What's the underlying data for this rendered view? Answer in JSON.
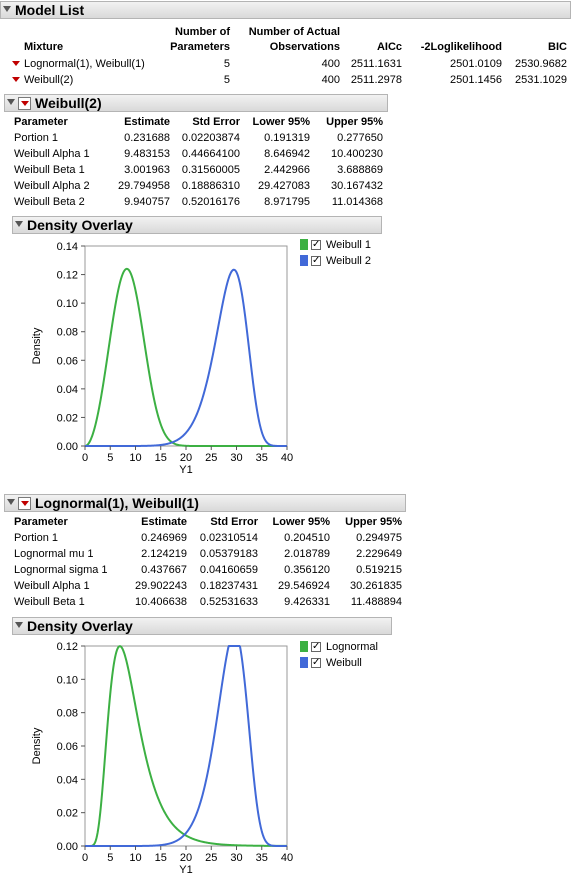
{
  "model_list": {
    "title": "Model List",
    "col_mixture": "Mixture",
    "col_nparams_1": "Number of",
    "col_nparams_2": "Parameters",
    "col_nobs_1": "Number of Actual",
    "col_nobs_2": "Observations",
    "col_aicc": "AICc",
    "col_loglik": "-2Loglikelihood",
    "col_bic": "BIC",
    "rows": [
      {
        "mixture": "Lognormal(1), Weibull(1)",
        "nparams": "5",
        "nobs": "400",
        "aicc": "2511.1631",
        "loglik": "2501.0109",
        "bic": "2530.9682"
      },
      {
        "mixture": "Weibull(2)",
        "nparams": "5",
        "nobs": "400",
        "aicc": "2511.2978",
        "loglik": "2501.1456",
        "bic": "2531.1029"
      }
    ]
  },
  "weibull2": {
    "title": "Weibull(2)",
    "headers": [
      "Parameter",
      "Estimate",
      "Std Error",
      "Lower 95%",
      "Upper 95%"
    ],
    "rows": [
      [
        "Portion 1",
        "0.231688",
        "0.02203874",
        "0.191319",
        "0.277650"
      ],
      [
        "Weibull Alpha 1",
        "9.483153",
        "0.44664100",
        "8.646942",
        "10.400230"
      ],
      [
        "Weibull Beta 1",
        "3.001963",
        "0.31560005",
        "2.442966",
        "3.688869"
      ],
      [
        "Weibull Alpha 2",
        "29.794958",
        "0.18886310",
        "29.427083",
        "30.167432"
      ],
      [
        "Weibull Beta 2",
        "9.940757",
        "0.52016176",
        "8.971795",
        "11.014368"
      ]
    ],
    "overlay_title": "Density Overlay",
    "legend": [
      "Weibull 1",
      "Weibull 2"
    ]
  },
  "lognormal_weibull": {
    "title": "Lognormal(1), Weibull(1)",
    "headers": [
      "Parameter",
      "Estimate",
      "Std Error",
      "Lower 95%",
      "Upper 95%"
    ],
    "rows": [
      [
        "Portion 1",
        "0.246969",
        "0.02310514",
        "0.204510",
        "0.294975"
      ],
      [
        "Lognormal mu 1",
        "2.124219",
        "0.05379183",
        "2.018789",
        "2.229649"
      ],
      [
        "Lognormal sigma 1",
        "0.437667",
        "0.04160659",
        "0.356120",
        "0.519215"
      ],
      [
        "Weibull Alpha 1",
        "29.902243",
        "0.18237431",
        "29.546924",
        "30.261835"
      ],
      [
        "Weibull Beta 1",
        "10.406638",
        "0.52531633",
        "9.426331",
        "11.488894"
      ]
    ],
    "overlay_title": "Density Overlay",
    "legend": [
      "Lognormal",
      "Weibull"
    ]
  },
  "colors": {
    "series1": "#3cb043",
    "series2": "#4169d8"
  },
  "chart_data": [
    {
      "type": "line",
      "xlabel": "Y1",
      "ylabel": "Density",
      "xlim": [
        0,
        40
      ],
      "ylim": [
        0,
        0.14
      ],
      "xticks": [
        0,
        5,
        10,
        15,
        20,
        25,
        30,
        35,
        40
      ],
      "yticks": [
        0.0,
        0.02,
        0.04,
        0.06,
        0.08,
        0.1,
        0.12,
        0.14
      ],
      "series": [
        {
          "name": "Weibull 1",
          "dist": "weibull",
          "alpha": 9.483153,
          "beta": 3.001963
        },
        {
          "name": "Weibull 2",
          "dist": "weibull",
          "alpha": 29.794958,
          "beta": 9.940757
        }
      ]
    },
    {
      "type": "line",
      "xlabel": "Y1",
      "ylabel": "Density",
      "xlim": [
        0,
        40
      ],
      "ylim": [
        0,
        0.12
      ],
      "xticks": [
        0,
        5,
        10,
        15,
        20,
        25,
        30,
        35,
        40
      ],
      "yticks": [
        0.0,
        0.02,
        0.04,
        0.06,
        0.08,
        0.1,
        0.12
      ],
      "series": [
        {
          "name": "Lognormal",
          "dist": "lognormal",
          "mu": 2.124219,
          "sigma": 0.437667
        },
        {
          "name": "Weibull",
          "dist": "weibull",
          "alpha": 29.902243,
          "beta": 10.406638
        }
      ]
    }
  ]
}
